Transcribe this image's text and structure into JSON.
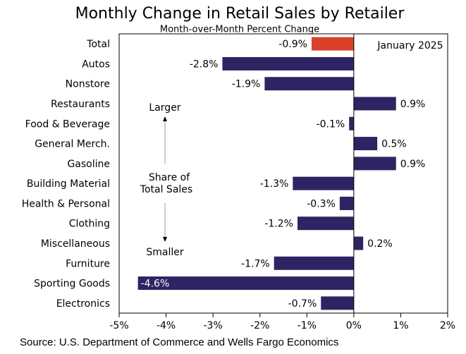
{
  "chart_data": {
    "type": "bar",
    "orientation": "horizontal",
    "title": "Monthly Change in Retail Sales by Retailer",
    "subtitle": "Month-over-Month Percent Change",
    "categories": [
      "Total",
      "Autos",
      "Nonstore",
      "Restaurants",
      "Food & Beverage",
      "General Merch.",
      "Gasoline",
      "Building Material",
      "Health & Personal",
      "Clothing",
      "Miscellaneous",
      "Furniture",
      "Sporting Goods",
      "Electronics"
    ],
    "values": [
      -0.9,
      -2.8,
      -1.9,
      0.9,
      -0.1,
      0.5,
      0.9,
      -1.3,
      -0.3,
      -1.2,
      0.2,
      -1.7,
      -4.6,
      -0.7
    ],
    "value_labels": [
      "-0.9%",
      "-2.8%",
      "-1.9%",
      "0.9%",
      "-0.1%",
      "0.5%",
      "0.9%",
      "-1.3%",
      "-0.3%",
      "-1.2%",
      "0.2%",
      "-1.7%",
      "-4.6%",
      "-0.7%"
    ],
    "colors": [
      "#d9412a",
      "#2e2463",
      "#2e2463",
      "#2e2463",
      "#2e2463",
      "#2e2463",
      "#2e2463",
      "#2e2463",
      "#2e2463",
      "#2e2463",
      "#2e2463",
      "#2e2463",
      "#2e2463",
      "#2e2463"
    ],
    "xlim": [
      -5,
      2
    ],
    "xticks": [
      {
        "value": -5,
        "label": "-5%"
      },
      {
        "value": -4,
        "label": "-4%"
      },
      {
        "value": -3,
        "label": "-3%"
      },
      {
        "value": -2,
        "label": "-2%"
      },
      {
        "value": -1,
        "label": "-1%"
      },
      {
        "value": 0,
        "label": "0%"
      },
      {
        "value": 1,
        "label": "1%"
      },
      {
        "value": 2,
        "label": "2%"
      }
    ],
    "grid": false,
    "annotations": [
      "January 2025",
      "Larger",
      "Share of",
      "Total Sales",
      "Smaller"
    ],
    "source": "Source: U.S. Department of Commerce and Wells Fargo Economics"
  }
}
